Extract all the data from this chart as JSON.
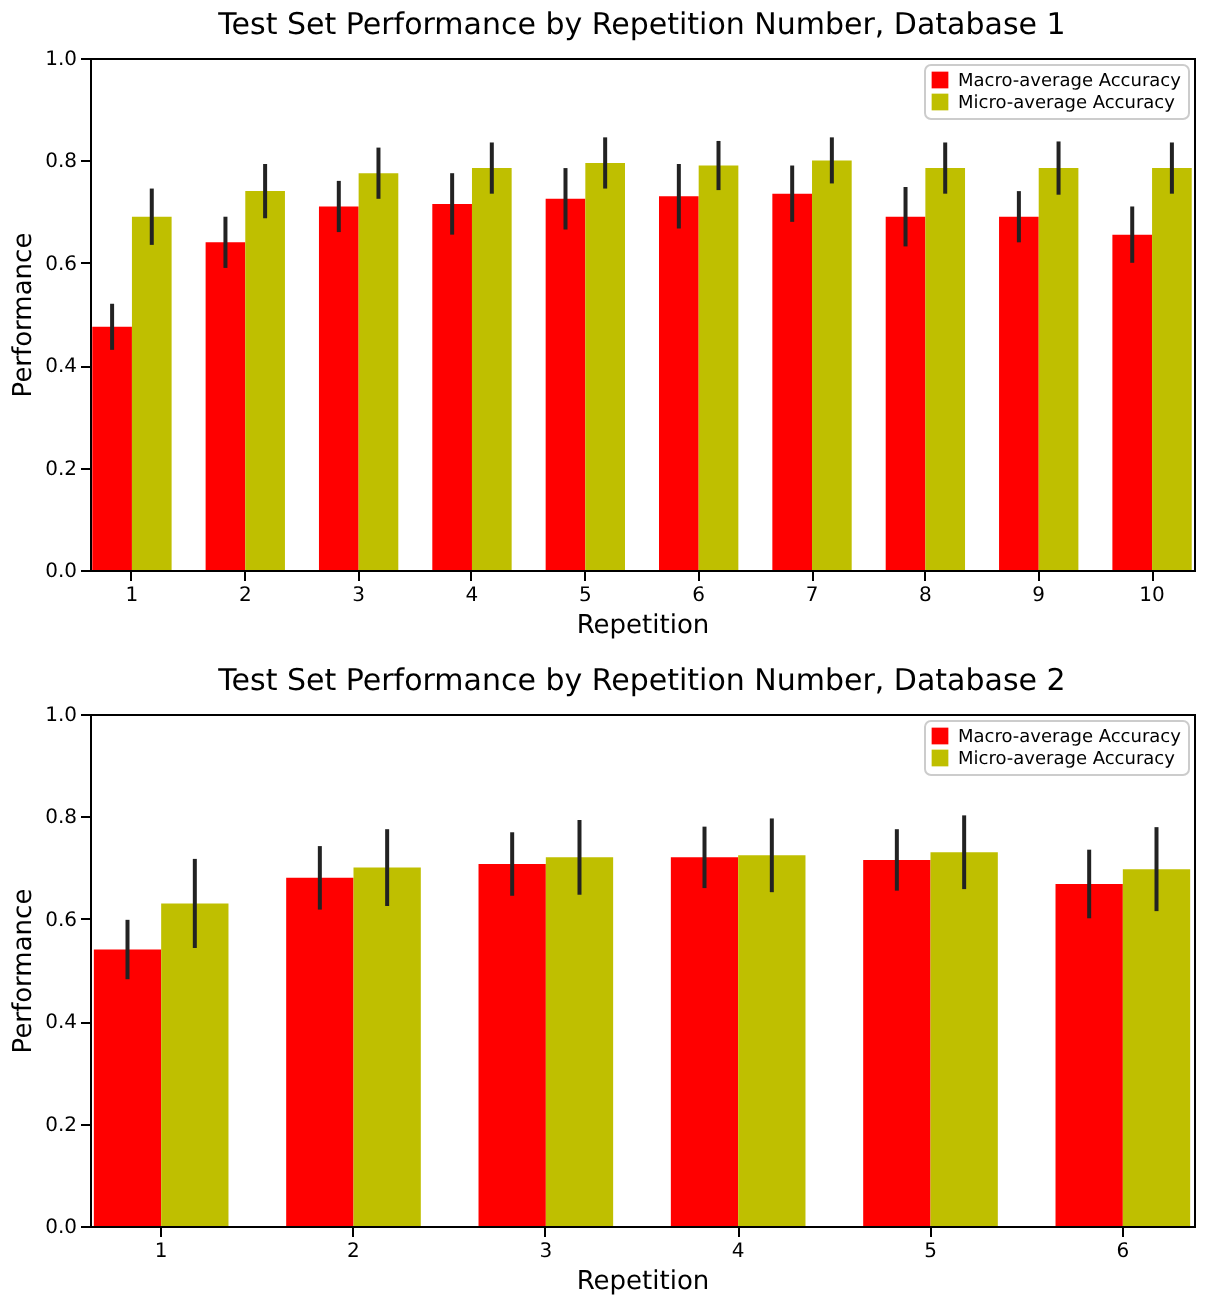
{
  "chart_data": [
    {
      "type": "bar",
      "title": "Test Set Performance by Repetition Number, Database 1",
      "xlabel": "Repetition",
      "ylabel": "Performance",
      "categories": [
        "1",
        "2",
        "3",
        "4",
        "5",
        "6",
        "7",
        "8",
        "9",
        "10"
      ],
      "series": [
        {
          "name": "Macro-average Accuracy",
          "color": "#ff0000",
          "values": [
            0.475,
            0.64,
            0.71,
            0.715,
            0.725,
            0.73,
            0.735,
            0.69,
            0.69,
            0.655
          ],
          "errors": [
            0.045,
            0.05,
            0.05,
            0.06,
            0.06,
            0.063,
            0.055,
            0.058,
            0.05,
            0.055
          ]
        },
        {
          "name": "Micro-average Accuracy",
          "color": "#bfbf00",
          "values": [
            0.69,
            0.74,
            0.775,
            0.785,
            0.795,
            0.79,
            0.8,
            0.785,
            0.785,
            0.785
          ],
          "errors": [
            0.055,
            0.053,
            0.05,
            0.05,
            0.05,
            0.048,
            0.045,
            0.05,
            0.052,
            0.05
          ]
        }
      ],
      "ylim": [
        0,
        1
      ],
      "yticks": [
        {
          "value": 0,
          "label": "0.0"
        },
        {
          "value": 0.2,
          "label": "0.2"
        },
        {
          "value": 0.4,
          "label": "0.4"
        },
        {
          "value": 0.6,
          "label": "0.6"
        },
        {
          "value": 0.8,
          "label": "0.8"
        },
        {
          "value": 1,
          "label": "1.0"
        }
      ],
      "legend": "top right",
      "grid": false
    },
    {
      "type": "bar",
      "title": "Test Set Performance by Repetition Number, Database 2",
      "xlabel": "Repetition",
      "ylabel": "Performance",
      "categories": [
        "1",
        "2",
        "3",
        "4",
        "5",
        "6"
      ],
      "series": [
        {
          "name": "Macro-average Accuracy",
          "color": "#ff0000",
          "values": [
            0.54,
            0.68,
            0.707,
            0.72,
            0.715,
            0.668
          ],
          "errors": [
            0.058,
            0.062,
            0.062,
            0.06,
            0.06,
            0.067
          ]
        },
        {
          "name": "Micro-average Accuracy",
          "color": "#bfbf00",
          "values": [
            0.63,
            0.7,
            0.72,
            0.724,
            0.73,
            0.697
          ],
          "errors": [
            0.087,
            0.075,
            0.073,
            0.072,
            0.072,
            0.082
          ]
        }
      ],
      "ylim": [
        0,
        1
      ],
      "yticks": [
        {
          "value": 0,
          "label": "0.0"
        },
        {
          "value": 0.2,
          "label": "0.2"
        },
        {
          "value": 0.4,
          "label": "0.4"
        },
        {
          "value": 0.6,
          "label": "0.6"
        },
        {
          "value": 0.8,
          "label": "0.8"
        },
        {
          "value": 1,
          "label": "1.0"
        }
      ],
      "legend": "top right",
      "grid": false
    }
  ]
}
